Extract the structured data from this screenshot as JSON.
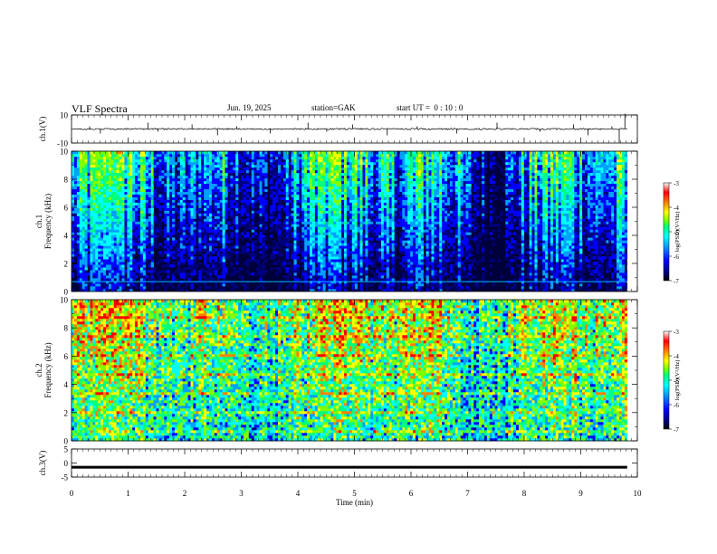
{
  "header": {
    "title": "VLF Spectra",
    "date": "Jun. 19, 2025",
    "station": "station=GAK",
    "start": "start UT =  0 : 10 : 0"
  },
  "chart_data": [
    {
      "type": "line",
      "panel": "waveform-ch1",
      "ylabel": "ch.1(V)",
      "ylim": [
        -10,
        10
      ],
      "yticks": [
        "10",
        "-10"
      ],
      "xlim": [
        0,
        10
      ],
      "baseline_value": 0,
      "spike_times_min": [
        0.32,
        0.51,
        1.35,
        1.53,
        2.13,
        2.58,
        2.92,
        3.51,
        4.18,
        4.51,
        4.97,
        5.58,
        6.11,
        6.81,
        7.52,
        8.28,
        8.87,
        9.13,
        9.55,
        9.68,
        9.78
      ]
    },
    {
      "type": "heatmap",
      "panel": "spectrogram-ch1",
      "ylabel": "ch.1\nFrequency (kHz)",
      "ylim": [
        0,
        10
      ],
      "yticks": [
        "0",
        "2",
        "4",
        "6",
        "8",
        "10"
      ],
      "xlim": [
        0,
        10
      ],
      "data_end_min": 9.82,
      "colorbar": {
        "label": "log(PSD)(V²/Hz)",
        "range": [
          -7,
          -3
        ],
        "ticks": [
          "-3",
          "-4",
          "-5",
          "-6",
          "-7"
        ]
      }
    },
    {
      "type": "heatmap",
      "panel": "spectrogram-ch2",
      "ylabel": "ch.2\nFrequency (kHz)",
      "ylim": [
        0,
        10
      ],
      "yticks": [
        "0",
        "2",
        "4",
        "6",
        "8",
        "10"
      ],
      "xlim": [
        0,
        10
      ],
      "data_end_min": 9.82,
      "colorbar": {
        "label": "log(PSD)(V²/Hz)",
        "range": [
          -7,
          -3
        ],
        "ticks": [
          "-3",
          "-4",
          "-5",
          "-6",
          "-7"
        ]
      }
    },
    {
      "type": "line",
      "panel": "waveform-ch3",
      "ylabel": "ch.3(V)",
      "ylim": [
        -5,
        5
      ],
      "yticks": [
        "5",
        "0",
        "-5"
      ],
      "xlim": [
        0,
        10
      ],
      "baseline_value": -1.5
    }
  ],
  "xaxis": {
    "label": "Time (min)",
    "ticks": [
      "0",
      "1",
      "2",
      "3",
      "4",
      "5",
      "6",
      "7",
      "8",
      "9",
      "10"
    ]
  },
  "colors": {
    "colormap": [
      "#000000",
      "#00007f",
      "#0000ff",
      "#00a0ff",
      "#00ffff",
      "#00ff80",
      "#80ff00",
      "#ffff00",
      "#ff8000",
      "#ff0000",
      "#ffffff"
    ]
  }
}
